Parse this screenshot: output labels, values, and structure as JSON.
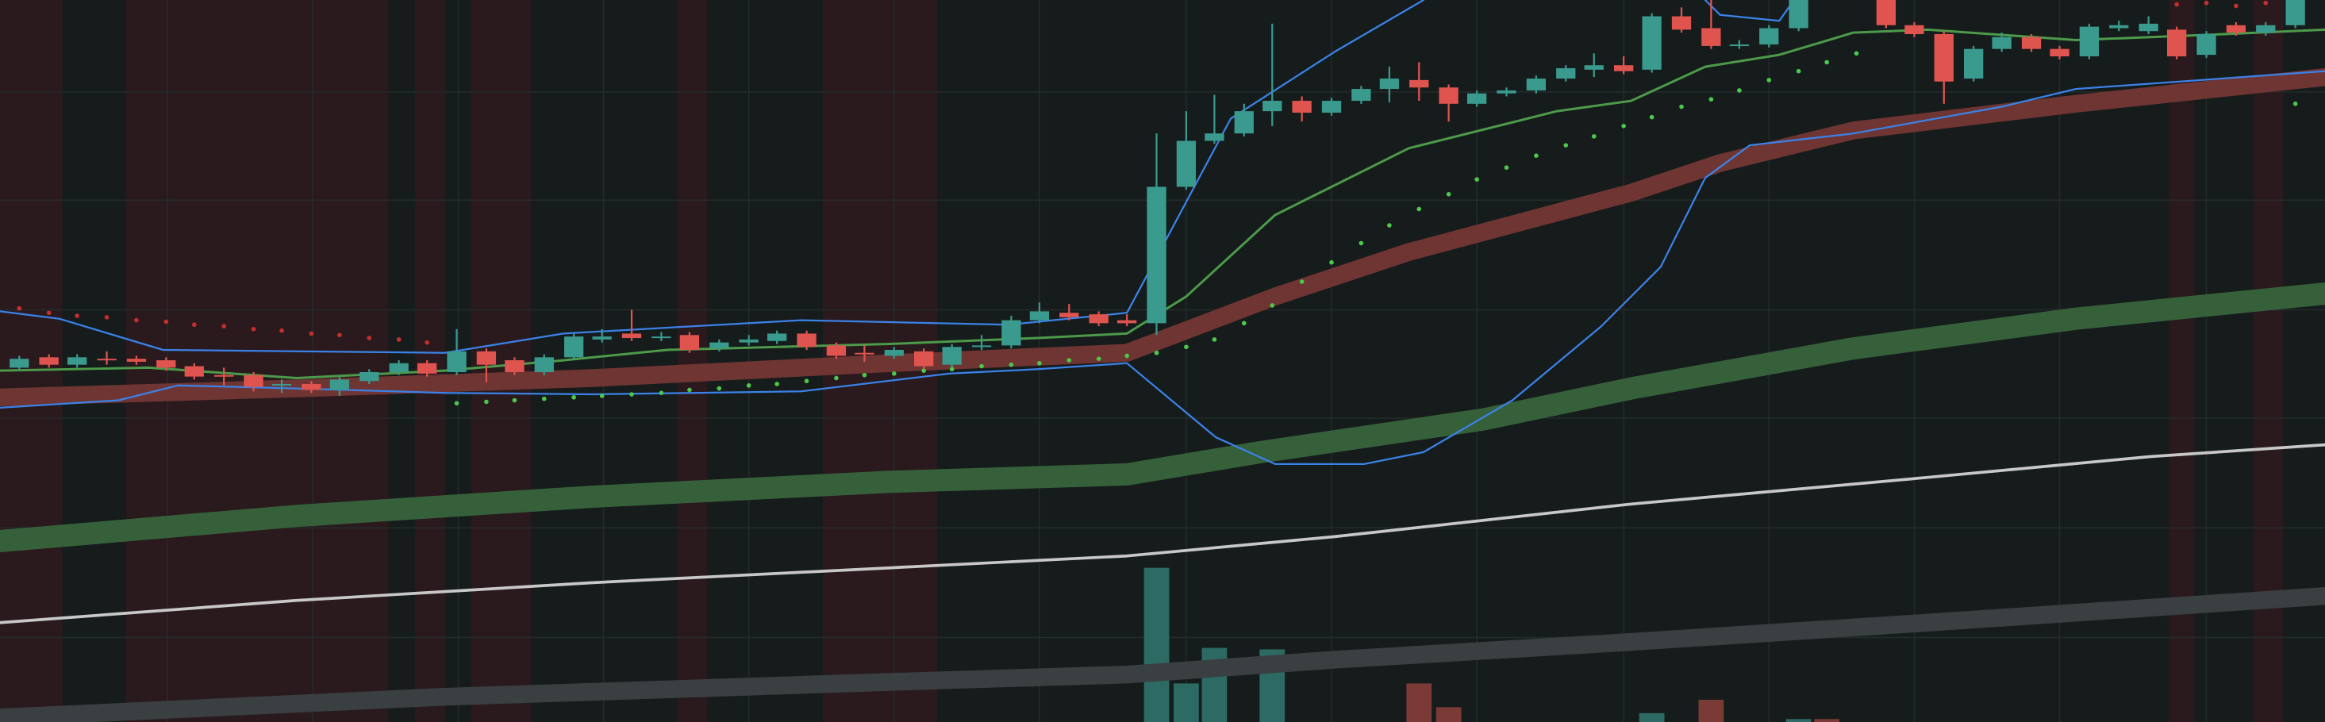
{
  "chart_data": {
    "type": "candlestick",
    "background": "#161c1c",
    "xlim": [
      0,
      1568
    ],
    "ylim": [
      0,
      487
    ],
    "y2lim": [
      0,
      487
    ],
    "grid": true,
    "grid_color": "#242b2b",
    "xticks": [
      113,
      211,
      309,
      407,
      505,
      603,
      701,
      800,
      898,
      996,
      1095,
      1193,
      1291,
      1389,
      1488
    ],
    "yticks": [
      57,
      131,
      205,
      278,
      352,
      425
    ],
    "shade_color": "#2a1a1e",
    "shaded_ranges": [
      [
        0,
        42
      ],
      [
        85,
        262
      ],
      [
        280,
        300
      ],
      [
        318,
        358
      ],
      [
        457,
        477
      ],
      [
        555,
        632
      ],
      [
        1463,
        1480
      ],
      [
        1520,
        1540
      ]
    ],
    "up_color": "#3a9a8e",
    "down_color": "#e0544f",
    "x": [
      13,
      33,
      52,
      72,
      92,
      112,
      131,
      151,
      171,
      190,
      210,
      229,
      249,
      269,
      288,
      308,
      328,
      347,
      367,
      387,
      406,
      426,
      446,
      465,
      485,
      505,
      524,
      544,
      564,
      583,
      603,
      623,
      642,
      662,
      682,
      701,
      721,
      741,
      760,
      780,
      800,
      819,
      839,
      858,
      878,
      898,
      918,
      937,
      957,
      977,
      996,
      1016,
      1036,
      1056,
      1075,
      1095,
      1114,
      1134,
      1154,
      1173,
      1193,
      1213,
      1272,
      1291,
      1311,
      1331,
      1350,
      1370,
      1389,
      1409,
      1429,
      1449,
      1468,
      1488,
      1508,
      1528,
      1548
    ],
    "open": [
      239,
      246,
      241,
      245,
      245,
      244,
      240,
      234,
      234,
      227,
      228,
      224,
      230,
      236,
      242,
      236,
      250,
      244,
      236,
      246,
      258,
      262,
      259,
      261,
      252,
      256,
      257,
      262,
      254,
      249,
      247,
      250,
      241,
      253,
      254,
      271,
      276,
      275,
      271,
      269,
      361,
      392,
      397,
      412,
      419,
      411,
      419,
      427,
      433,
      428,
      417,
      424,
      426,
      434,
      440,
      443,
      440,
      476,
      468,
      456,
      457,
      468,
      490,
      470,
      464,
      434,
      454,
      462,
      454,
      449,
      468,
      466,
      467,
      450,
      470,
      465,
      470
    ],
    "high": [
      247,
      248,
      248,
      250,
      247,
      246,
      242,
      239,
      236,
      231,
      230,
      233,
      238,
      244,
      244,
      265,
      252,
      246,
      248,
      262,
      265,
      278,
      263,
      263,
      258,
      261,
      264,
      264,
      256,
      254,
      253,
      252,
      255,
      261,
      274,
      283,
      282,
      277,
      275,
      397,
      412,
      423,
      417,
      471,
      422,
      421,
      429,
      442,
      445,
      430,
      426,
      428,
      436,
      443,
      451,
      449,
      478,
      482,
      487,
      460,
      470,
      495,
      492,
      472,
      466,
      456,
      465,
      464,
      456,
      471,
      473,
      476,
      469,
      466,
      472,
      472,
      492
    ],
    "low": [
      237,
      239,
      239,
      241,
      241,
      237,
      231,
      227,
      223,
      222,
      222,
      220,
      228,
      234,
      233,
      234,
      229,
      234,
      234,
      244,
      256,
      257,
      257,
      249,
      250,
      254,
      255,
      251,
      245,
      243,
      245,
      238,
      239,
      251,
      252,
      269,
      271,
      267,
      267,
      261,
      359,
      390,
      395,
      402,
      405,
      409,
      417,
      418,
      419,
      405,
      415,
      422,
      424,
      432,
      435,
      437,
      438,
      465,
      454,
      454,
      455,
      466,
      468,
      462,
      417,
      432,
      452,
      452,
      447,
      447,
      466,
      464,
      447,
      448,
      463,
      463,
      468
    ],
    "close": [
      245,
      241,
      246,
      244,
      243,
      239,
      233,
      233,
      226,
      228,
      224,
      231,
      236,
      242,
      235,
      250,
      241,
      236,
      246,
      260,
      260,
      259,
      260,
      251,
      256,
      258,
      262,
      253,
      247,
      248,
      251,
      240,
      253,
      254,
      271,
      277,
      273,
      269,
      269,
      361,
      392,
      397,
      412,
      419,
      411,
      419,
      427,
      434,
      428,
      417,
      424,
      426,
      434,
      441,
      443,
      439,
      476,
      467,
      456,
      457,
      468,
      492,
      470,
      464,
      432,
      454,
      462,
      454,
      449,
      469,
      470,
      471,
      449,
      464,
      465,
      470,
      490
    ],
    "volume": {
      "x": [
        780,
        800,
        819,
        858,
        957,
        977,
        1114,
        1154,
        1213,
        1232
      ],
      "values": [
        104,
        26,
        50,
        49,
        26,
        10,
        6,
        15,
        2,
        2
      ],
      "colors": [
        "#2d6a64",
        "#2d6a64",
        "#2d6a64",
        "#2d6a64",
        "#7a3b36",
        "#7a3b36",
        "#2d6a64",
        "#7a3b36",
        "#2d6a64",
        "#7a3b36"
      ]
    },
    "overlays": [
      {
        "type": "band",
        "color": "#3a3f41",
        "width": 12,
        "x": [
          0,
          300,
          600,
          760,
          900,
          1100,
          1300,
          1568
        ],
        "values": [
          3,
          17,
          27,
          32,
          42,
          54,
          67,
          85
        ]
      },
      {
        "type": "line",
        "color": "#c8c8c8",
        "width": 2,
        "x": [
          0,
          200,
          400,
          600,
          760,
          900,
          1100,
          1300,
          1450,
          1568
        ],
        "values": [
          67,
          82,
          94,
          104,
          112,
          125,
          147,
          165,
          179,
          187
        ]
      },
      {
        "type": "band",
        "color": "#36603a",
        "width": 15,
        "x": [
          0,
          200,
          400,
          600,
          760,
          850,
          1000,
          1100,
          1250,
          1400,
          1568
        ],
        "values": [
          122,
          139,
          152,
          162,
          167,
          182,
          204,
          225,
          252,
          272,
          289
        ]
      },
      {
        "type": "band",
        "color": "#6e3532",
        "width": 12,
        "x": [
          0,
          200,
          400,
          600,
          760,
          860,
          950,
          1100,
          1160,
          1250,
          1400,
          1568
        ],
        "values": [
          219,
          225,
          232,
          242,
          249,
          287,
          317,
          357,
          377,
          399,
          417,
          435
        ]
      },
      {
        "type": "line",
        "color": "#3b82e8",
        "width": 1.2,
        "x": [
          0,
          40,
          110,
          300,
          380,
          540,
          680,
          760,
          830,
          900,
          960,
          1000,
          1150,
          1160,
          1200,
          1210
        ],
        "values": [
          277,
          272,
          251,
          249,
          262,
          271,
          268,
          276,
          407,
          452,
          487,
          null,
          487,
          477,
          473,
          487
        ]
      },
      {
        "type": "line",
        "color": "#3b82e8",
        "width": 1.2,
        "x": [
          0,
          80,
          120,
          200,
          300,
          400,
          540,
          640,
          700,
          760,
          820,
          860,
          920,
          960,
          1020,
          1080,
          1120,
          1150,
          1180,
          1250,
          1350,
          1400,
          1568
        ],
        "values": [
          212,
          217,
          227,
          225,
          222,
          221,
          223,
          235,
          238,
          242,
          192,
          174,
          174,
          182,
          217,
          267,
          307,
          367,
          389,
          397,
          415,
          427,
          439
        ]
      },
      {
        "type": "line",
        "color": "#4c9a4a",
        "width": 1.6,
        "x": [
          0,
          100,
          200,
          300,
          380,
          450,
          600,
          700,
          760,
          800,
          860,
          950,
          1050,
          1100,
          1150,
          1200,
          1250,
          1300,
          1400,
          1500,
          1568
        ],
        "values": [
          237,
          239,
          232,
          237,
          244,
          251,
          255,
          259,
          262,
          287,
          342,
          387,
          412,
          419,
          442,
          450,
          465,
          467,
          460,
          464,
          467
        ]
      },
      {
        "type": "dots",
        "color": "#c62f2f",
        "width": 3,
        "x": [
          13,
          33,
          52,
          72,
          92,
          112,
          131,
          151,
          171,
          190,
          210,
          229,
          249,
          269,
          288,
          1468,
          1488,
          1508,
          1528
        ],
        "values": [
          279,
          276,
          274,
          273,
          271,
          270,
          268,
          267,
          265,
          264,
          262,
          261,
          259,
          258,
          256,
          484,
          485,
          483,
          485
        ]
      },
      {
        "type": "dots",
        "color": "#4cc94c",
        "width": 3,
        "x": [
          308,
          328,
          347,
          367,
          387,
          406,
          426,
          446,
          465,
          485,
          505,
          524,
          544,
          564,
          583,
          603,
          623,
          642,
          662,
          682,
          701,
          721,
          741,
          760,
          780,
          800,
          819,
          839,
          858,
          878,
          898,
          918,
          937,
          957,
          977,
          996,
          1016,
          1036,
          1056,
          1075,
          1095,
          1114,
          1134,
          1154,
          1173,
          1193,
          1213,
          1232,
          1252,
          1548
        ],
        "values": [
          215,
          216,
          217,
          218,
          219,
          220,
          221,
          222,
          224,
          225,
          227,
          228,
          230,
          232,
          234,
          235,
          237,
          238,
          240,
          241,
          242,
          244,
          245,
          247,
          249,
          253,
          258,
          269,
          281,
          297,
          310,
          323,
          335,
          346,
          356,
          366,
          374,
          382,
          389,
          395,
          402,
          408,
          415,
          420,
          426,
          433,
          439,
          445,
          451,
          417
        ]
      }
    ]
  }
}
